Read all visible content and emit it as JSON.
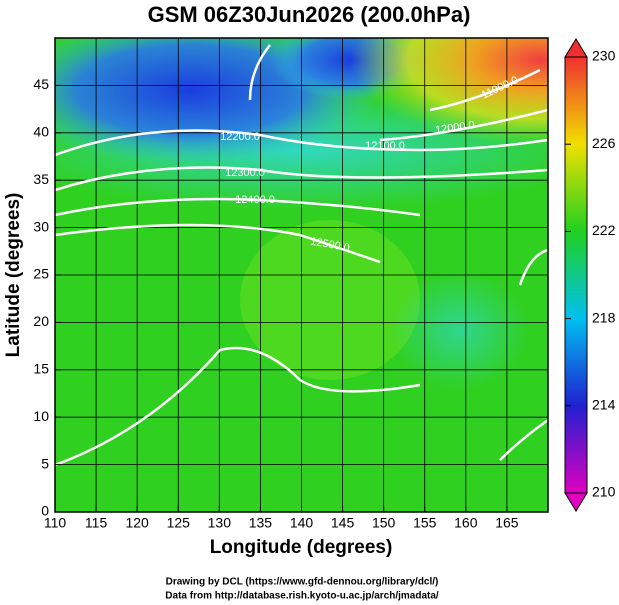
{
  "chart_data": {
    "type": "map",
    "title": "GSM 06Z30Jun2026 (200.0hPa)",
    "xlabel": "Longitude (degrees)",
    "ylabel": "Latitude  (degrees)",
    "xlim": [
      110,
      170
    ],
    "ylim": [
      0,
      50
    ],
    "xticks": [
      110,
      115,
      120,
      125,
      130,
      135,
      140,
      145,
      150,
      155,
      160,
      165
    ],
    "yticks": [
      0,
      5,
      10,
      15,
      20,
      25,
      30,
      35,
      40,
      45
    ],
    "grid": true,
    "colorbar": {
      "lim": [
        210,
        230
      ],
      "ticks": [
        210,
        214,
        218,
        222,
        226,
        230
      ]
    },
    "contour_labels": [
      "11900.0",
      "12000.0",
      "12100.0",
      "12200.0",
      "12300.0",
      "12400.0",
      "12500.0"
    ],
    "credits": [
      "Drawing by DCL (https://www.gfd-dennou.org/library/dcl/)",
      "Data from http://database.rish.kyoto-u.ac.jp/arch/jmadata/"
    ]
  }
}
